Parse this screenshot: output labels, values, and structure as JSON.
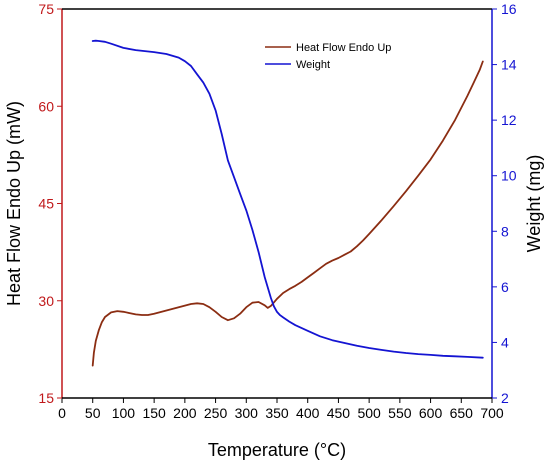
{
  "chart_data": {
    "type": "line",
    "xlabel": "Temperature (°C)",
    "ylabel_left": "Heat Flow Endo Up (mW)",
    "ylabel_right": "Weight (mg)",
    "xlim": [
      0,
      700
    ],
    "ylim_left": [
      15,
      75
    ],
    "ylim_right": [
      2,
      16
    ],
    "x_ticks": [
      0,
      50,
      100,
      150,
      200,
      250,
      300,
      350,
      400,
      450,
      500,
      550,
      600,
      650,
      700
    ],
    "y_left_ticks": [
      15,
      30,
      45,
      60,
      75
    ],
    "y_right_ticks": [
      2,
      4,
      6,
      8,
      10,
      12,
      14,
      16
    ],
    "grid": false,
    "legend_position": "top-center",
    "colors": {
      "left_axis": "#c0191b",
      "right_axis": "#1414d2",
      "heat_flow": "#8b2d12",
      "weight": "#1414d2"
    },
    "series": [
      {
        "name": "Heat Flow Endo Up",
        "axis": "left",
        "x": [
          50,
          52,
          55,
          60,
          65,
          70,
          80,
          90,
          100,
          110,
          120,
          130,
          140,
          150,
          170,
          190,
          210,
          220,
          230,
          240,
          250,
          260,
          270,
          280,
          290,
          300,
          310,
          320,
          330,
          335,
          340,
          350,
          360,
          370,
          380,
          390,
          400,
          410,
          420,
          430,
          440,
          450,
          460,
          470,
          480,
          490,
          500,
          520,
          540,
          560,
          580,
          600,
          620,
          640,
          660,
          670,
          680,
          685
        ],
        "values": [
          20.0,
          22.0,
          23.8,
          25.5,
          26.7,
          27.5,
          28.2,
          28.4,
          28.3,
          28.1,
          27.9,
          27.8,
          27.8,
          28.0,
          28.5,
          29.0,
          29.5,
          29.6,
          29.5,
          29.0,
          28.3,
          27.5,
          27.0,
          27.3,
          28.0,
          29.0,
          29.7,
          29.8,
          29.3,
          28.9,
          29.2,
          30.3,
          31.2,
          31.8,
          32.3,
          32.9,
          33.6,
          34.3,
          35.0,
          35.7,
          36.2,
          36.6,
          37.1,
          37.6,
          38.4,
          39.3,
          40.3,
          42.4,
          44.6,
          46.9,
          49.3,
          51.8,
          54.7,
          57.9,
          61.6,
          63.6,
          65.6,
          66.9
        ]
      },
      {
        "name": "Weight",
        "axis": "right",
        "x": [
          50,
          55,
          60,
          70,
          80,
          100,
          120,
          150,
          170,
          190,
          200,
          210,
          220,
          230,
          240,
          250,
          260,
          270,
          280,
          290,
          300,
          310,
          320,
          330,
          340,
          345,
          350,
          355,
          360,
          370,
          380,
          400,
          420,
          440,
          460,
          480,
          500,
          520,
          540,
          560,
          580,
          600,
          620,
          640,
          660,
          685
        ],
        "values": [
          14.85,
          14.86,
          14.85,
          14.82,
          14.75,
          14.6,
          14.52,
          14.45,
          14.38,
          14.25,
          14.12,
          13.95,
          13.65,
          13.35,
          12.95,
          12.35,
          11.5,
          10.55,
          9.95,
          9.35,
          8.75,
          8.05,
          7.25,
          6.35,
          5.6,
          5.3,
          5.1,
          4.98,
          4.9,
          4.75,
          4.62,
          4.42,
          4.22,
          4.08,
          3.98,
          3.88,
          3.8,
          3.73,
          3.67,
          3.62,
          3.58,
          3.55,
          3.52,
          3.5,
          3.48,
          3.45
        ]
      }
    ]
  }
}
